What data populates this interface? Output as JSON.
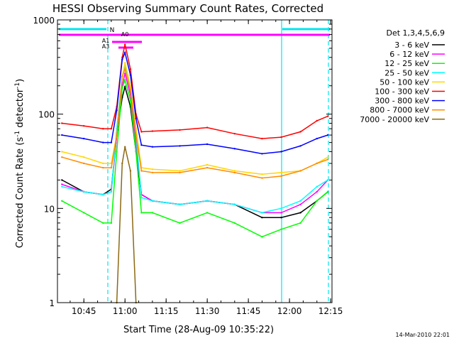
{
  "chart_data": {
    "type": "line",
    "title": "HESSI Observing Summary Count Rates, Corrected",
    "xlabel": "Start Time (28-Aug-09 10:35:22)",
    "ylabel": "Corrected Count Rate (s",
    "ylabel_sup1": "-1",
    "ylabel_mid": " detector",
    "ylabel_sup2": "-1",
    "ylabel_end": ")",
    "footer": "14-Mar-2010 22:01",
    "y_scale": "log",
    "ylim": [
      1,
      1000
    ],
    "xlim": [
      "10:35:22",
      "12:15:30"
    ],
    "x_ticks": [
      "10:45",
      "11:00",
      "11:15",
      "11:30",
      "11:45",
      "12:00",
      "12:15"
    ],
    "y_ticks": [
      {
        "value": 1,
        "label": "1"
      },
      {
        "value": 10,
        "label": "10"
      },
      {
        "value": 100,
        "label": "100"
      },
      {
        "value": 1000,
        "label": "1000"
      }
    ],
    "legend_title": "Det 1,3,4,5,6,9",
    "legend_position": "right",
    "x": [
      "10:37:00",
      "10:45:00",
      "10:52:00",
      "10:55:00",
      "10:57:00",
      "10:59:00",
      "11:00:00",
      "11:02:00",
      "11:04:00",
      "11:06:00",
      "11:10:00",
      "11:20:00",
      "11:30:00",
      "11:40:00",
      "11:50:00",
      "11:57:00",
      "12:04:00",
      "12:10:00",
      "12:14:00"
    ],
    "series": [
      {
        "name": "3 - 6 keV",
        "color": "#000000",
        "values": [
          20,
          15,
          14,
          16,
          60,
          150,
          195,
          120,
          40,
          14,
          12,
          11,
          12,
          11,
          8,
          8,
          9,
          12,
          15
        ]
      },
      {
        "name": "6 - 12 keV",
        "color": "#ff00ff",
        "values": [
          18,
          15,
          14,
          15,
          60,
          200,
          270,
          160,
          50,
          14,
          12,
          11,
          12,
          11,
          9,
          9,
          11,
          15,
          20
        ]
      },
      {
        "name": "12 - 25 keV",
        "color": "#00ff00",
        "values": [
          12,
          9,
          7,
          7,
          40,
          190,
          230,
          140,
          40,
          9,
          9,
          7,
          9,
          7,
          5,
          6,
          7,
          12,
          15
        ]
      },
      {
        "name": "25 - 50 keV",
        "color": "#00ffff",
        "values": [
          17,
          15,
          14,
          15,
          70,
          250,
          320,
          190,
          60,
          13,
          12,
          11,
          12,
          11,
          9,
          10,
          12,
          17,
          20
        ]
      },
      {
        "name": "50 - 100 keV",
        "color": "#ffd700",
        "values": [
          40,
          35,
          30,
          30,
          60,
          250,
          350,
          200,
          70,
          27,
          26,
          25,
          29,
          25,
          23,
          24,
          25,
          30,
          35
        ]
      },
      {
        "name": "100 - 300 keV",
        "color": "#ff0000",
        "values": [
          80,
          75,
          70,
          70,
          120,
          400,
          550,
          300,
          100,
          65,
          66,
          68,
          72,
          62,
          55,
          57,
          65,
          85,
          95
        ]
      },
      {
        "name": "300 - 800 keV",
        "color": "#0000ff",
        "values": [
          60,
          55,
          50,
          50,
          110,
          380,
          450,
          260,
          90,
          47,
          45,
          46,
          48,
          43,
          38,
          40,
          46,
          55,
          60
        ]
      },
      {
        "name": "800 - 7000 keV",
        "color": "#ff8c00",
        "values": [
          35,
          30,
          27,
          27,
          60,
          250,
          300,
          180,
          60,
          25,
          24,
          24,
          27,
          24,
          21,
          22,
          25,
          30,
          33
        ]
      },
      {
        "name": "7000 - 20000 keV",
        "color": "#8b6914",
        "values": [
          null,
          null,
          null,
          null,
          1,
          30,
          45,
          25,
          1,
          null,
          null,
          null,
          null,
          null,
          null,
          null,
          null,
          null,
          null
        ]
      }
    ],
    "attenuator_labels": [
      "A1",
      "A0",
      "A3"
    ],
    "night_label": "N"
  }
}
